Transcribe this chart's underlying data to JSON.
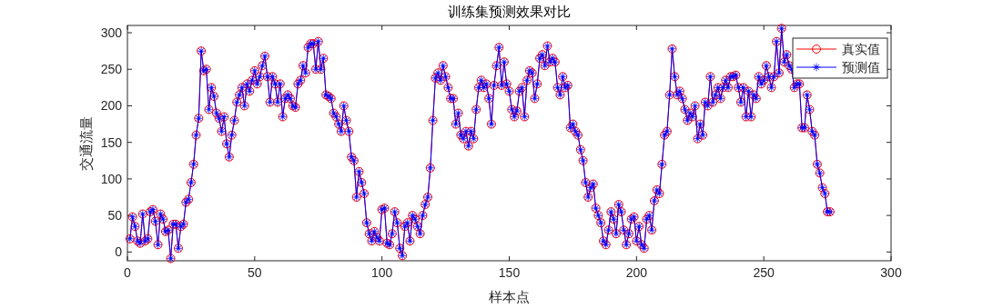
{
  "chart_data": {
    "type": "line",
    "title": "训练集预测效果对比",
    "xlabel": "样本点",
    "ylabel": "交通流量",
    "xlim": [
      0,
      300
    ],
    "ylim": [
      -12,
      310
    ],
    "xticks": [
      0,
      50,
      100,
      150,
      200,
      250,
      300
    ],
    "yticks": [
      0,
      50,
      100,
      150,
      200,
      250,
      300
    ],
    "legend": "top right",
    "x": [
      1,
      2,
      3,
      4,
      5,
      6,
      7,
      8,
      9,
      10,
      11,
      12,
      13,
      14,
      15,
      16,
      17,
      18,
      19,
      20,
      21,
      22,
      23,
      24,
      25,
      26,
      27,
      28,
      29,
      30,
      31,
      32,
      33,
      34,
      35,
      36,
      37,
      38,
      39,
      40,
      41,
      42,
      43,
      44,
      45,
      46,
      47,
      48,
      49,
      50,
      51,
      52,
      53,
      54,
      55,
      56,
      57,
      58,
      59,
      60,
      61,
      62,
      63,
      64,
      65,
      66,
      67,
      68,
      69,
      70,
      71,
      72,
      73,
      74,
      75,
      76,
      77,
      78,
      79,
      80,
      81,
      82,
      83,
      84,
      85,
      86,
      87,
      88,
      89,
      90,
      91,
      92,
      93,
      94,
      95,
      96,
      97,
      98,
      99,
      100,
      101,
      102,
      103,
      104,
      105,
      106,
      107,
      108,
      109,
      110,
      111,
      112,
      113,
      114,
      115,
      116,
      117,
      118,
      119,
      120,
      121,
      122,
      123,
      124,
      125,
      126,
      127,
      128,
      129,
      130,
      131,
      132,
      133,
      134,
      135,
      136,
      137,
      138,
      139,
      140,
      141,
      142,
      143,
      144,
      145,
      146,
      147,
      148,
      149,
      150,
      151,
      152,
      153,
      154,
      155,
      156,
      157,
      158,
      159,
      160,
      161,
      162,
      163,
      164,
      165,
      166,
      167,
      168,
      169,
      170,
      171,
      172,
      173,
      174,
      175,
      176,
      177,
      178,
      179,
      180,
      181,
      182,
      183,
      184,
      185,
      186,
      187,
      188,
      189,
      190,
      191,
      192,
      193,
      194,
      195,
      196,
      197,
      198,
      199,
      200,
      201,
      202,
      203,
      204,
      205,
      206,
      207,
      208,
      209,
      210,
      211,
      212,
      213,
      214,
      215,
      216,
      217,
      218,
      219,
      220,
      221,
      222,
      223,
      224,
      225,
      226,
      227,
      228,
      229,
      230,
      231,
      232,
      233,
      234,
      235,
      236,
      237,
      238,
      239,
      240,
      241,
      242,
      243,
      244,
      245,
      246,
      247,
      248,
      249,
      250,
      251,
      252,
      253,
      254,
      255,
      256,
      257,
      258,
      259,
      260,
      261,
      262,
      263,
      264,
      265,
      266,
      267,
      268,
      269,
      270,
      271,
      272,
      273,
      274,
      275,
      276
    ],
    "series": [
      {
        "name": "真实值",
        "color": "#ff0000",
        "marker": "circle",
        "values": [
          18,
          48,
          35,
          15,
          12,
          52,
          15,
          18,
          55,
          58,
          42,
          10,
          52,
          45,
          28,
          30,
          -9,
          38,
          38,
          5,
          35,
          38,
          68,
          72,
          95,
          120,
          160,
          183,
          275,
          248,
          250,
          195,
          225,
          213,
          190,
          183,
          165,
          185,
          148,
          130,
          160,
          180,
          205,
          215,
          225,
          200,
          230,
          220,
          235,
          248,
          230,
          240,
          255,
          268,
          240,
          205,
          240,
          230,
          205,
          230,
          185,
          210,
          215,
          210,
          200,
          198,
          230,
          235,
          255,
          245,
          280,
          285,
          285,
          250,
          288,
          250,
          265,
          215,
          213,
          210,
          190,
          185,
          175,
          165,
          200,
          180,
          165,
          130,
          125,
          75,
          110,
          95,
          80,
          40,
          25,
          15,
          28,
          20,
          15,
          58,
          60,
          12,
          10,
          25,
          55,
          40,
          5,
          -5,
          35,
          40,
          15,
          50,
          45,
          35,
          25,
          50,
          65,
          75,
          115,
          180,
          238,
          245,
          235,
          255,
          240,
          225,
          210,
          210,
          175,
          190,
          160,
          155,
          165,
          145,
          165,
          155,
          195,
          225,
          235,
          225,
          230,
          210,
          175,
          228,
          255,
          280,
          228,
          260,
          230,
          220,
          195,
          185,
          193,
          220,
          225,
          185,
          235,
          248,
          245,
          210,
          230,
          265,
          270,
          255,
          282,
          260,
          265,
          260,
          225,
          215,
          240,
          225,
          228,
          170,
          175,
          165,
          160,
          140,
          125,
          95,
          75,
          88,
          93,
          60,
          50,
          40,
          15,
          10,
          30,
          55,
          45,
          25,
          65,
          55,
          30,
          10,
          25,
          45,
          48,
          15,
          35,
          10,
          5,
          45,
          50,
          30,
          70,
          85,
          80,
          120,
          160,
          165,
          215,
          278,
          240,
          215,
          220,
          210,
          195,
          180,
          190,
          185,
          200,
          155,
          175,
          160,
          205,
          200,
          240,
          205,
          215,
          225,
          210,
          225,
          235,
          225,
          240,
          240,
          242,
          225,
          205,
          225,
          185,
          220,
          185,
          215,
          210,
          240,
          230,
          235,
          255,
          240,
          225,
          240,
          288,
          245,
          306,
          260,
          270,
          255,
          250,
          225,
          230,
          230,
          170,
          170,
          215,
          195,
          165,
          160,
          120,
          108,
          88,
          80,
          55,
          55
        ]
      },
      {
        "name": "预测值",
        "color": "#0000ff",
        "marker": "star",
        "values": [
          18,
          48,
          35,
          15,
          12,
          52,
          15,
          18,
          55,
          58,
          42,
          10,
          52,
          45,
          28,
          30,
          -9,
          38,
          38,
          5,
          35,
          38,
          68,
          72,
          95,
          120,
          160,
          183,
          275,
          248,
          250,
          195,
          225,
          213,
          190,
          183,
          165,
          185,
          148,
          130,
          160,
          180,
          205,
          215,
          225,
          200,
          230,
          220,
          235,
          248,
          230,
          240,
          255,
          268,
          240,
          205,
          240,
          230,
          205,
          230,
          185,
          210,
          215,
          210,
          200,
          198,
          230,
          235,
          255,
          245,
          280,
          285,
          285,
          250,
          288,
          250,
          265,
          215,
          213,
          210,
          190,
          185,
          175,
          165,
          200,
          180,
          165,
          130,
          125,
          75,
          110,
          95,
          80,
          40,
          25,
          15,
          28,
          20,
          15,
          58,
          60,
          12,
          10,
          25,
          55,
          40,
          5,
          -5,
          35,
          40,
          15,
          50,
          45,
          35,
          25,
          50,
          65,
          75,
          115,
          180,
          238,
          245,
          235,
          255,
          240,
          225,
          210,
          210,
          175,
          190,
          160,
          155,
          165,
          145,
          165,
          155,
          195,
          225,
          235,
          225,
          230,
          210,
          175,
          228,
          255,
          280,
          228,
          260,
          230,
          220,
          195,
          185,
          193,
          220,
          225,
          185,
          235,
          248,
          245,
          210,
          230,
          265,
          270,
          255,
          282,
          260,
          265,
          260,
          225,
          215,
          240,
          225,
          228,
          170,
          175,
          165,
          160,
          140,
          125,
          95,
          75,
          88,
          93,
          60,
          50,
          40,
          15,
          10,
          30,
          55,
          45,
          25,
          65,
          55,
          30,
          10,
          25,
          45,
          48,
          15,
          35,
          10,
          5,
          45,
          50,
          30,
          70,
          85,
          80,
          120,
          160,
          165,
          215,
          278,
          240,
          215,
          220,
          210,
          195,
          180,
          190,
          185,
          200,
          155,
          175,
          160,
          205,
          200,
          240,
          205,
          215,
          225,
          210,
          225,
          235,
          225,
          240,
          240,
          242,
          225,
          205,
          225,
          185,
          220,
          185,
          215,
          210,
          240,
          230,
          235,
          255,
          240,
          225,
          240,
          288,
          245,
          306,
          260,
          270,
          255,
          250,
          225,
          230,
          230,
          170,
          170,
          215,
          195,
          165,
          160,
          120,
          108,
          88,
          80,
          55,
          55
        ]
      }
    ]
  }
}
